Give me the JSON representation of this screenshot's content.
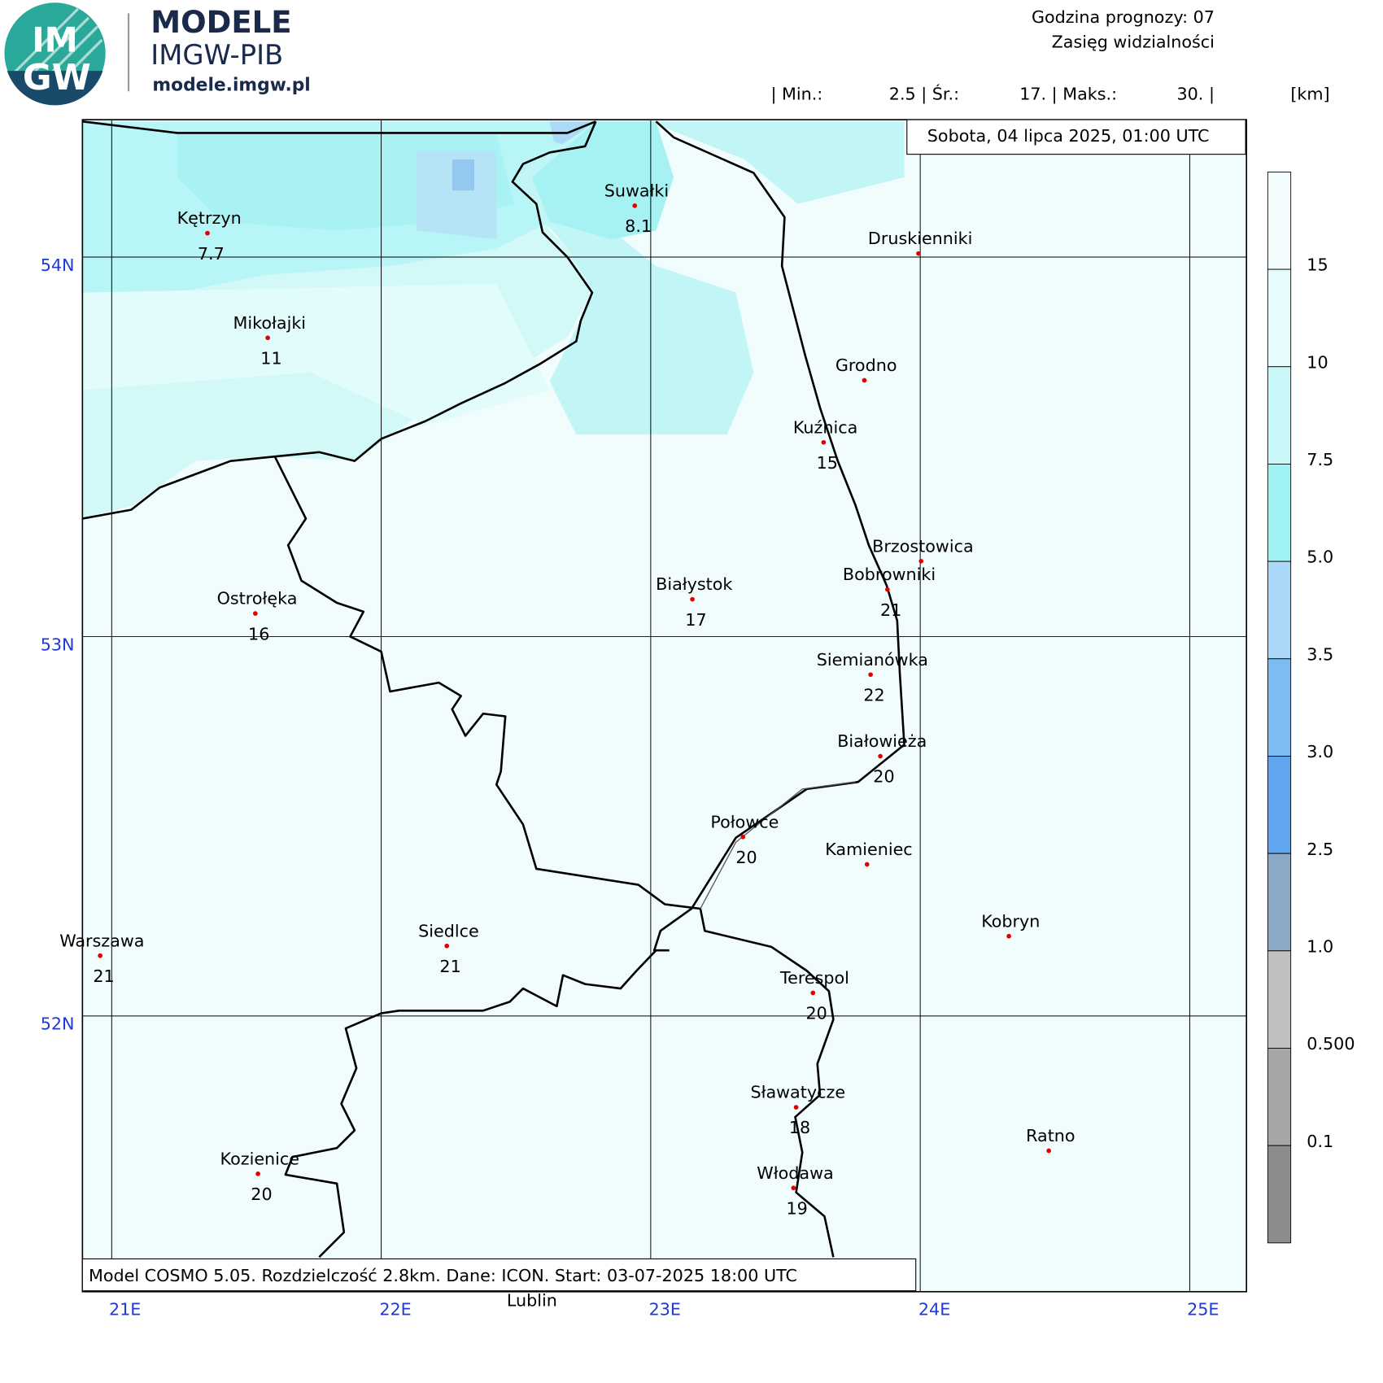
{
  "header": {
    "logo": {
      "top": "IM",
      "bottom": "GW"
    },
    "brand": "MODELE",
    "org": "IMGW-PIB",
    "url": "modele.imgw.pl",
    "forecast_hour": "Godzina prognozy: 07",
    "field": "Zasięg widzialności",
    "stats": [
      "| Min.:",
      "2.5 | Śr.:",
      "17. | Maks.:",
      "30. |",
      "[km]"
    ]
  },
  "date": "Sobota, 04 lipca 2025, 01:00 UTC",
  "footer": "Model COSMO 5.05. Rozdzielczość 2.8km. Dane: ICON. Start: 03-07-2025 18:00 UTC",
  "extra_label": "Lublin",
  "lat_labels": [
    "54N",
    "53N",
    "52N"
  ],
  "lon_labels": [
    "21E",
    "22E",
    "23E",
    "24E",
    "25E"
  ],
  "cities": [
    {
      "name": "Kętrzyn",
      "value": 7.7
    },
    {
      "name": "Suwałki",
      "value": 8.1
    },
    {
      "name": "Druskienniki"
    },
    {
      "name": "Mikołajki",
      "value": 11
    },
    {
      "name": "Grodno"
    },
    {
      "name": "Kuźnica",
      "value": 15
    },
    {
      "name": "Brzostowica"
    },
    {
      "name": "Bobrowniki",
      "value": 21
    },
    {
      "name": "Białystok",
      "value": 17
    },
    {
      "name": "Ostrołęka",
      "value": 16
    },
    {
      "name": "Siemianówka",
      "value": 22
    },
    {
      "name": "Białowieża",
      "value": 20
    },
    {
      "name": "Połowce",
      "value": 20
    },
    {
      "name": "Kamieniec"
    },
    {
      "name": "Kobryn"
    },
    {
      "name": "Warszawa",
      "value": 21
    },
    {
      "name": "Siedlce",
      "value": 21
    },
    {
      "name": "Terespol",
      "value": 20
    },
    {
      "name": "Sławatycze",
      "value": 18
    },
    {
      "name": "Ratno"
    },
    {
      "name": "Kozienice",
      "value": 20
    },
    {
      "name": "Włodawa",
      "value": 19
    }
  ],
  "colorbar": {
    "colors": [
      "#f3fcfd",
      "#e6fbfb",
      "#c9f6f7",
      "#9ff3f3",
      "#aad8f6",
      "#7dbcf3",
      "#60a6ee",
      "#8aa9c6",
      "#c0c0c0",
      "#a6a6a6",
      "#8c8c8c"
    ],
    "labels": [
      15,
      10,
      7.5,
      {
        "value": 5,
        "label": "5.0"
      },
      3.5,
      {
        "value": 3,
        "label": "3.0"
      },
      2.5,
      {
        "value": 1,
        "label": "1.0"
      },
      {
        "value": 0.5,
        "label": "0.500"
      },
      0.1
    ]
  }
}
